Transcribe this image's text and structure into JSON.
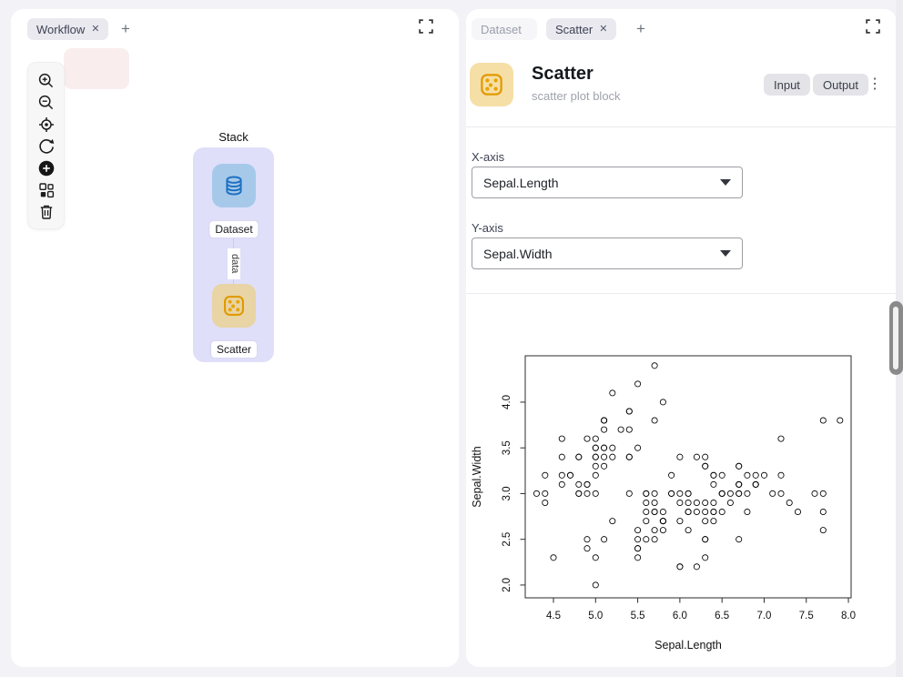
{
  "left_panel": {
    "tab_label": "Workflow",
    "add_tab_label": "+",
    "toolbar_icons": [
      "zoom-in",
      "zoom-out",
      "locate",
      "refresh",
      "add-node",
      "components",
      "delete"
    ],
    "canvas": {
      "stack_label": "Stack",
      "dataset_node_label": "Dataset",
      "scatter_node_label": "Scatter",
      "edge_label": "data"
    }
  },
  "right_panel": {
    "tabs": [
      {
        "label": "Dataset",
        "active": false,
        "closable": false
      },
      {
        "label": "Scatter",
        "active": true,
        "closable": true
      }
    ],
    "add_tab_label": "+",
    "header": {
      "title": "Scatter",
      "subtitle": "scatter plot block",
      "input_badge": "Input",
      "output_badge": "Output"
    },
    "form": {
      "x_label": "X-axis",
      "x_value": "Sepal.Length",
      "y_label": "Y-axis",
      "y_value": "Sepal.Width"
    }
  },
  "colors": {
    "page_background": "#f3f3f7",
    "stack_fill": "#dfdffa",
    "dataset_node_fill": "#a6c9ea",
    "dataset_icon_stroke": "#1d70c1",
    "scatter_node_fill": "#e8d4a4",
    "scatter_icon_stroke": "#e09a00",
    "pink_node_fill": "#f9edee",
    "badge_fill": "#e3e3e8"
  },
  "chart_data": {
    "type": "scatter",
    "title": "",
    "xlabel": "Sepal.Length",
    "ylabel": "Sepal.Width",
    "xticks": [
      4.5,
      5.0,
      5.5,
      6.0,
      6.5,
      7.0,
      7.5,
      8.0
    ],
    "yticks": [
      2.0,
      2.5,
      3.0,
      3.5,
      4.0
    ],
    "xlim": [
      4.165,
      8.032
    ],
    "ylim": [
      1.86,
      4.507
    ],
    "grid": false,
    "marker": "open-circle",
    "x": [
      5.1,
      4.9,
      4.7,
      4.6,
      5.0,
      5.4,
      4.6,
      5.0,
      4.4,
      4.9,
      5.4,
      4.8,
      4.8,
      4.3,
      5.8,
      5.7,
      5.4,
      5.1,
      5.7,
      5.1,
      5.4,
      5.1,
      4.6,
      5.1,
      4.8,
      5.0,
      5.0,
      5.2,
      5.2,
      4.7,
      4.8,
      5.4,
      5.2,
      5.5,
      4.9,
      5.0,
      5.5,
      4.9,
      4.4,
      5.1,
      5.0,
      4.5,
      4.4,
      5.0,
      5.1,
      4.8,
      5.1,
      4.6,
      5.3,
      5.0,
      7.0,
      6.4,
      6.9,
      5.5,
      6.5,
      5.7,
      6.3,
      4.9,
      6.6,
      5.2,
      5.0,
      5.9,
      6.0,
      6.1,
      5.6,
      6.7,
      5.6,
      5.8,
      6.2,
      5.6,
      5.9,
      6.1,
      6.3,
      6.1,
      6.4,
      6.6,
      6.8,
      6.7,
      6.0,
      5.7,
      5.5,
      5.5,
      5.8,
      6.0,
      5.4,
      6.0,
      6.7,
      6.3,
      5.6,
      5.5,
      5.5,
      6.1,
      5.8,
      5.0,
      5.6,
      5.7,
      5.7,
      6.2,
      5.1,
      5.7,
      6.3,
      5.8,
      7.1,
      6.3,
      6.5,
      7.6,
      4.9,
      7.3,
      6.7,
      7.2,
      6.5,
      6.4,
      6.8,
      5.7,
      5.8,
      6.4,
      6.5,
      7.7,
      7.7,
      6.0,
      6.9,
      5.6,
      7.7,
      6.3,
      6.7,
      7.2,
      6.2,
      6.1,
      6.4,
      7.2,
      7.4,
      7.9,
      6.4,
      6.3,
      6.1,
      7.7,
      6.3,
      6.4,
      6.0,
      6.9,
      6.7,
      6.9,
      5.8,
      6.8,
      6.7,
      6.7,
      6.3,
      6.5,
      6.2,
      5.9
    ],
    "y": [
      3.5,
      3.0,
      3.2,
      3.1,
      3.6,
      3.9,
      3.4,
      3.4,
      2.9,
      3.1,
      3.7,
      3.4,
      3.0,
      3.0,
      4.0,
      4.4,
      3.9,
      3.5,
      3.8,
      3.8,
      3.4,
      3.7,
      3.6,
      3.3,
      3.4,
      3.0,
      3.4,
      3.5,
      3.4,
      3.2,
      3.1,
      3.4,
      4.1,
      4.2,
      3.1,
      3.2,
      3.5,
      3.6,
      3.0,
      3.4,
      3.5,
      2.3,
      3.2,
      3.5,
      3.8,
      3.0,
      3.8,
      3.2,
      3.7,
      3.3,
      3.2,
      3.2,
      3.1,
      2.3,
      2.8,
      2.8,
      3.3,
      2.4,
      2.9,
      2.7,
      2.0,
      3.0,
      2.2,
      2.9,
      2.9,
      3.1,
      3.0,
      2.7,
      2.2,
      2.5,
      3.2,
      2.8,
      2.5,
      2.8,
      2.9,
      3.0,
      2.8,
      3.0,
      2.9,
      2.6,
      2.4,
      2.4,
      2.7,
      2.7,
      3.0,
      3.4,
      3.1,
      2.3,
      3.0,
      2.5,
      2.6,
      3.0,
      2.6,
      2.3,
      2.7,
      3.0,
      2.9,
      2.9,
      2.5,
      2.8,
      3.3,
      2.7,
      3.0,
      2.9,
      3.0,
      3.0,
      2.5,
      2.9,
      2.5,
      3.6,
      3.2,
      2.7,
      3.0,
      2.5,
      2.8,
      3.2,
      3.0,
      3.8,
      2.6,
      2.2,
      3.2,
      2.8,
      2.8,
      2.7,
      3.3,
      3.2,
      2.8,
      3.0,
      2.8,
      3.0,
      2.8,
      3.8,
      2.8,
      2.8,
      2.6,
      3.0,
      3.4,
      3.1,
      3.0,
      3.1,
      3.1,
      3.1,
      2.7,
      3.2,
      3.3,
      3.0,
      2.5,
      3.0,
      3.4,
      3.0
    ]
  }
}
